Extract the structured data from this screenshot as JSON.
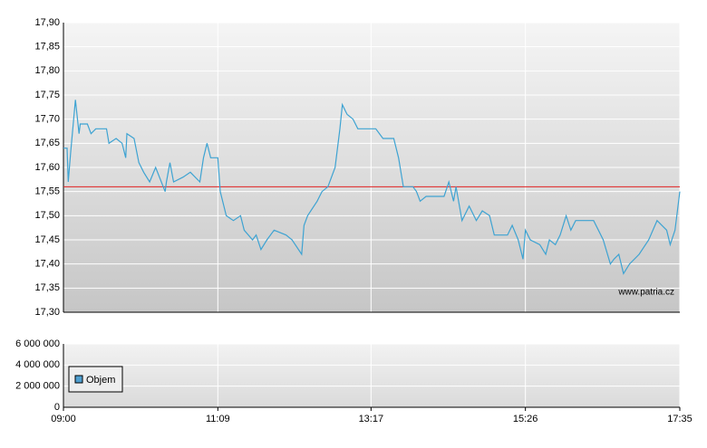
{
  "chart_data": [
    {
      "type": "line",
      "watermark": "www.patria.cz",
      "x": [
        "09:00",
        "09:03",
        "09:04",
        "09:06",
        "09:10",
        "09:13",
        "09:14",
        "09:20",
        "09:23",
        "09:27",
        "09:36",
        "09:38",
        "09:44",
        "09:49",
        "09:52",
        "09:53",
        "09:59",
        "10:03",
        "10:07",
        "10:12",
        "10:17",
        "10:25",
        "10:26",
        "10:29",
        "10:32",
        "10:40",
        "10:46",
        "10:54",
        "10:57",
        "11:00",
        "11:03",
        "11:09",
        "11:11",
        "11:16",
        "11:22",
        "11:28",
        "11:31",
        "11:38",
        "11:41",
        "11:45",
        "11:50",
        "11:56",
        "12:06",
        "12:11",
        "12:19",
        "12:21",
        "12:24",
        "12:32",
        "12:36",
        "12:41",
        "12:47",
        "12:51",
        "12:53",
        "12:57",
        "13:02",
        "13:06",
        "13:21",
        "13:27",
        "13:36",
        "13:40",
        "13:44",
        "13:52",
        "13:55",
        "13:58",
        "14:03",
        "14:18",
        "14:22",
        "14:26",
        "14:28",
        "14:33",
        "14:39",
        "14:45",
        "14:50",
        "14:56",
        "15:00",
        "15:11",
        "15:15",
        "15:20",
        "15:24",
        "15:26",
        "15:30",
        "15:38",
        "15:43",
        "15:46",
        "15:51",
        "15:55",
        "16:00",
        "16:04",
        "16:08",
        "16:23",
        "16:27",
        "16:31",
        "16:37",
        "16:40",
        "16:44",
        "16:48",
        "16:53",
        "17:01",
        "17:09",
        "17:16",
        "17:24",
        "17:27",
        "17:31",
        "17:35"
      ],
      "series": [
        {
          "color": "#3ea3d2",
          "values": [
            17.64,
            17.64,
            17.57,
            17.63,
            17.74,
            17.67,
            17.69,
            17.69,
            17.67,
            17.68,
            17.68,
            17.65,
            17.66,
            17.65,
            17.62,
            17.67,
            17.66,
            17.61,
            17.59,
            17.57,
            17.6,
            17.55,
            17.57,
            17.61,
            17.57,
            17.58,
            17.59,
            17.57,
            17.62,
            17.65,
            17.62,
            17.62,
            17.55,
            17.5,
            17.49,
            17.5,
            17.47,
            17.45,
            17.46,
            17.43,
            17.45,
            17.47,
            17.46,
            17.45,
            17.42,
            17.48,
            17.5,
            17.53,
            17.55,
            17.56,
            17.6,
            17.68,
            17.73,
            17.71,
            17.7,
            17.68,
            17.68,
            17.66,
            17.66,
            17.62,
            17.56,
            17.56,
            17.55,
            17.53,
            17.54,
            17.54,
            17.57,
            17.53,
            17.56,
            17.49,
            17.52,
            17.49,
            17.51,
            17.5,
            17.46,
            17.46,
            17.48,
            17.45,
            17.41,
            17.47,
            17.45,
            17.44,
            17.42,
            17.45,
            17.44,
            17.46,
            17.5,
            17.47,
            17.49,
            17.49,
            17.47,
            17.45,
            17.4,
            17.41,
            17.42,
            17.38,
            17.4,
            17.42,
            17.45,
            17.49,
            17.47,
            17.44,
            17.47,
            17.55
          ]
        }
      ],
      "reference": {
        "value": 17.56,
        "color": "#e02020"
      },
      "xlim": [
        "09:00",
        "17:35"
      ],
      "ylim": [
        17.3,
        17.9
      ],
      "yticks": [
        {
          "value": 17.3,
          "label": "17,30"
        },
        {
          "value": 17.35,
          "label": "17,35"
        },
        {
          "value": 17.4,
          "label": "17,40"
        },
        {
          "value": 17.45,
          "label": "17,45"
        },
        {
          "value": 17.5,
          "label": "17,50"
        },
        {
          "value": 17.55,
          "label": "17,55"
        },
        {
          "value": 17.6,
          "label": "17,60"
        },
        {
          "value": 17.65,
          "label": "17,65"
        },
        {
          "value": 17.7,
          "label": "17,70"
        },
        {
          "value": 17.75,
          "label": "17,75"
        },
        {
          "value": 17.8,
          "label": "17,80"
        },
        {
          "value": 17.85,
          "label": "17,85"
        },
        {
          "value": 17.9,
          "label": "17,90"
        }
      ],
      "grid": true
    },
    {
      "type": "bar",
      "series": [
        {
          "name": "Objem",
          "color": "#4f9fd0"
        }
      ],
      "xlim": [
        "09:00",
        "17:35"
      ],
      "xticks": [
        "09:00",
        "11:09",
        "13:17",
        "15:26",
        "17:35"
      ],
      "ylim": [
        0,
        6000000
      ],
      "yticks": [
        0,
        {
          "value": 2000000,
          "label": "2 000 000"
        },
        {
          "value": 4000000,
          "label": "4 000 000"
        },
        {
          "value": 6000000,
          "label": "6 000 000"
        }
      ],
      "grid": true
    }
  ]
}
